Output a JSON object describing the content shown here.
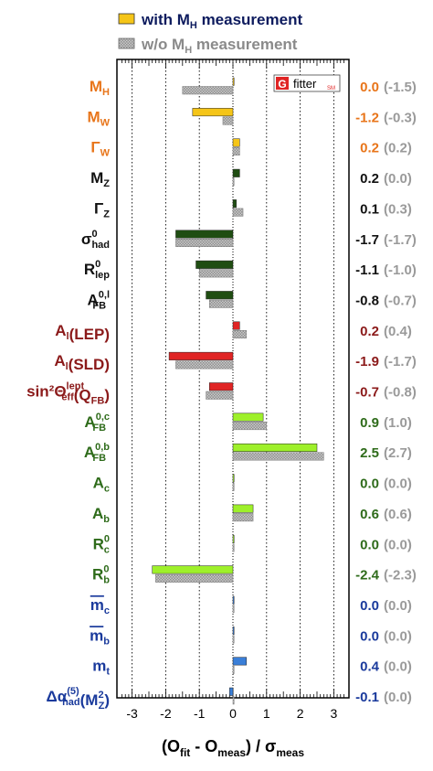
{
  "chart_data": {
    "type": "bar",
    "orientation": "horizontal",
    "xlabel": {
      "main": "(O",
      "sub1": "fit",
      "mid": " - O",
      "sub2": "meas",
      "tail": ") / σ",
      "sub3": "meas"
    },
    "xlim": [
      -3.3,
      3.3
    ],
    "xticks": [
      -3,
      -2,
      -1,
      0,
      1,
      2,
      3
    ],
    "grid": "dotted vertical lines at integer ticks",
    "legend": {
      "placement": "top",
      "entries": [
        {
          "pre": "with M",
          "sub": "H",
          "post": " measurement",
          "color": "#f5c518",
          "style": "solid"
        },
        {
          "pre": "w/o M",
          "sub": "H",
          "post": " measurement",
          "color": "#aaaaaa",
          "style": "hatched"
        }
      ]
    },
    "logo": {
      "letter": "G",
      "text": "fitter",
      "suffix": "SM"
    },
    "series": [
      {
        "name": "with M_H measurement",
        "style": "solid"
      },
      {
        "name": "w/o M_H measurement",
        "style": "hatched"
      }
    ],
    "rows": [
      {
        "base": "M",
        "sub": "H",
        "sup": "",
        "tail": "",
        "label_color": "#e8751a",
        "with": 0.0,
        "without": -1.5,
        "bar_color": "#f5c518",
        "val_with": "0.0",
        "val_without": "(-1.5)",
        "val_color": "#e8751a"
      },
      {
        "base": "M",
        "sub": "W",
        "sup": "",
        "tail": "",
        "label_color": "#e8751a",
        "with": -1.2,
        "without": -0.3,
        "bar_color": "#f5c518",
        "val_with": "-1.2",
        "val_without": "(-0.3)",
        "val_color": "#e8751a"
      },
      {
        "base": "Γ",
        "sub": "W",
        "sup": "",
        "tail": "",
        "label_color": "#e8751a",
        "with": 0.2,
        "without": 0.2,
        "bar_color": "#f5c518",
        "val_with": "0.2",
        "val_without": "(0.2)",
        "val_color": "#e8751a"
      },
      {
        "base": "M",
        "sub": "Z",
        "sup": "",
        "tail": "",
        "label_color": "#111111",
        "with": 0.2,
        "without": 0.0,
        "bar_color": "#1f4d12",
        "val_with": "0.2",
        "val_without": "(0.0)",
        "val_color": "#111111"
      },
      {
        "base": "Γ",
        "sub": "Z",
        "sup": "",
        "tail": "",
        "label_color": "#111111",
        "with": 0.1,
        "without": 0.3,
        "bar_color": "#1f4d12",
        "val_with": "0.1",
        "val_without": "(0.3)",
        "val_color": "#111111"
      },
      {
        "base": "σ",
        "sub": "had",
        "sup": "0",
        "tail": "",
        "label_color": "#111111",
        "with": -1.7,
        "without": -1.7,
        "bar_color": "#1f4d12",
        "val_with": "-1.7",
        "val_without": "(-1.7)",
        "val_color": "#111111"
      },
      {
        "base": "R",
        "sub": "lep",
        "sup": "0",
        "tail": "",
        "label_color": "#111111",
        "with": -1.1,
        "without": -1.0,
        "bar_color": "#1f4d12",
        "val_with": "-1.1",
        "val_without": "(-1.0)",
        "val_color": "#111111"
      },
      {
        "base": "A",
        "sub": "FB",
        "sup": "0,l",
        "tail": "",
        "label_color": "#111111",
        "with": -0.8,
        "without": -0.7,
        "bar_color": "#1f4d12",
        "val_with": "-0.8",
        "val_without": "(-0.7)",
        "val_color": "#111111"
      },
      {
        "base": "A",
        "sub": "l",
        "sup": "",
        "tail": "(LEP)",
        "label_color": "#8b1a1a",
        "with": 0.2,
        "without": 0.4,
        "bar_color": "#e02424",
        "val_with": "0.2",
        "val_without": "(0.4)",
        "val_color": "#8b1a1a"
      },
      {
        "base": "A",
        "sub": "l",
        "sup": "",
        "tail": "(SLD)",
        "label_color": "#8b1a1a",
        "with": -1.9,
        "without": -1.7,
        "bar_color": "#e02424",
        "val_with": "-1.9",
        "val_without": "(-1.7)",
        "val_color": "#8b1a1a"
      },
      {
        "base": "sin²Θ",
        "sub": "eff",
        "sup": "lept",
        "tail": "(Q",
        "tail_sub": "FB",
        "tail_end": ")",
        "label_color": "#8b1a1a",
        "with": -0.7,
        "without": -0.8,
        "bar_color": "#e02424",
        "val_with": "-0.7",
        "val_without": "(-0.8)",
        "val_color": "#8b1a1a"
      },
      {
        "base": "A",
        "sub": "FB",
        "sup": "0,c",
        "tail": "",
        "label_color": "#2e6b1a",
        "with": 0.9,
        "without": 1.0,
        "bar_color": "#9ef02a",
        "val_with": "0.9",
        "val_without": "(1.0)",
        "val_color": "#2e6b1a"
      },
      {
        "base": "A",
        "sub": "FB",
        "sup": "0,b",
        "tail": "",
        "label_color": "#2e6b1a",
        "with": 2.5,
        "without": 2.7,
        "bar_color": "#9ef02a",
        "val_with": "2.5",
        "val_without": "(2.7)",
        "val_color": "#2e6b1a"
      },
      {
        "base": "A",
        "sub": "c",
        "sup": "",
        "tail": "",
        "label_color": "#2e6b1a",
        "with": 0.0,
        "without": 0.0,
        "bar_color": "#9ef02a",
        "val_with": "0.0",
        "val_without": "(0.0)",
        "val_color": "#2e6b1a"
      },
      {
        "base": "A",
        "sub": "b",
        "sup": "",
        "tail": "",
        "label_color": "#2e6b1a",
        "with": 0.6,
        "without": 0.6,
        "bar_color": "#9ef02a",
        "val_with": "0.6",
        "val_without": "(0.6)",
        "val_color": "#2e6b1a"
      },
      {
        "base": "R",
        "sub": "c",
        "sup": "0",
        "tail": "",
        "label_color": "#2e6b1a",
        "with": 0.0,
        "without": 0.0,
        "bar_color": "#9ef02a",
        "val_with": "0.0",
        "val_without": "(0.0)",
        "val_color": "#2e6b1a"
      },
      {
        "base": "R",
        "sub": "b",
        "sup": "0",
        "tail": "",
        "label_color": "#2e6b1a",
        "with": -2.4,
        "without": -2.3,
        "bar_color": "#9ef02a",
        "val_with": "-2.4",
        "val_without": "(-2.3)",
        "val_color": "#2e6b1a"
      },
      {
        "base": "m",
        "overline": true,
        "sub": "c",
        "sup": "",
        "tail": "",
        "label_color": "#1a3a9c",
        "with": 0.0,
        "without": 0.0,
        "bar_color": "#3a7fd8",
        "val_with": "0.0",
        "val_without": "(0.0)",
        "val_color": "#1a3a9c"
      },
      {
        "base": "m",
        "overline": true,
        "sub": "b",
        "sup": "",
        "tail": "",
        "label_color": "#1a3a9c",
        "with": 0.0,
        "without": 0.0,
        "bar_color": "#3a7fd8",
        "val_with": "0.0",
        "val_without": "(0.0)",
        "val_color": "#1a3a9c"
      },
      {
        "base": "m",
        "sub": "t",
        "sup": "",
        "tail": "",
        "label_color": "#1a3a9c",
        "with": 0.4,
        "without": 0.0,
        "bar_color": "#3a7fd8",
        "val_with": "0.4",
        "val_without": "(0.0)",
        "val_color": "#1a3a9c"
      },
      {
        "base": "Δα",
        "sub": "had",
        "sup": "(5)",
        "tail": "(M",
        "tail_sub": "Z",
        "tail_sup": "2",
        "tail_end": ")",
        "label_color": "#1a3a9c",
        "with": -0.1,
        "without": 0.0,
        "bar_color": "#3a7fd8",
        "val_with": "-0.1",
        "val_without": "(0.0)",
        "val_color": "#1a3a9c"
      }
    ]
  },
  "colors": {
    "without_bar": "#bdbdbd",
    "without_text": "#9a9a9a",
    "legend_text": "#0d1b5e"
  }
}
